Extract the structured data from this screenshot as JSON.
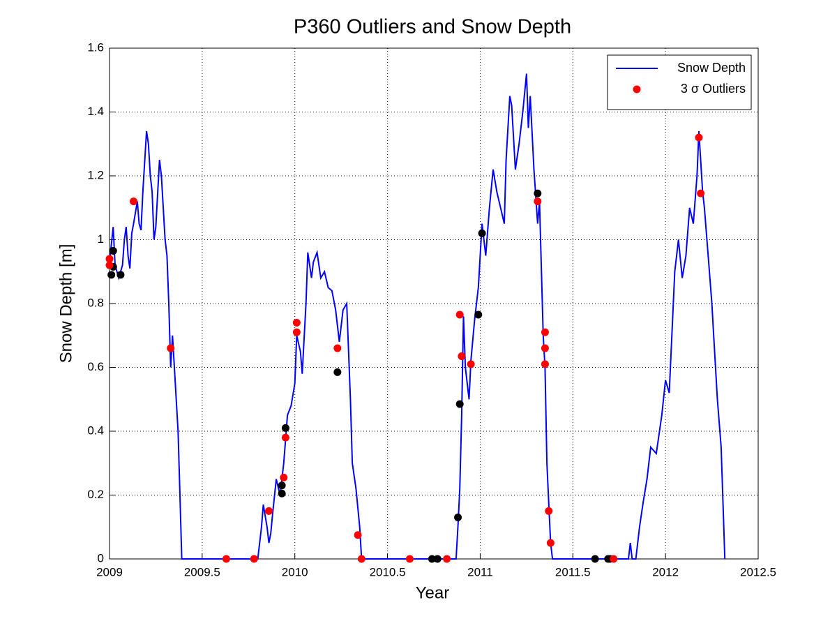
{
  "chart_data": {
    "type": "line",
    "title": "P360 Outliers and Snow Depth",
    "x_label": "Year",
    "y_label": "Snow Depth [m]",
    "xlim": [
      2009,
      2012.5
    ],
    "xticks": [
      2009,
      2009.5,
      2010,
      2010.5,
      2011,
      2011.5,
      2012,
      2012.5
    ],
    "ylim": [
      0,
      1.6
    ],
    "yticks": [
      0,
      0.2,
      0.4,
      0.6,
      0.8,
      1,
      1.2,
      1.4,
      1.6
    ],
    "grid": true,
    "legend": "top-right",
    "series": [
      {
        "name": "Snow Depth",
        "type": "line",
        "color": "#0000ff",
        "x": [
          2009.0,
          2009.02,
          2009.03,
          2009.05,
          2009.07,
          2009.08,
          2009.09,
          2009.1,
          2009.11,
          2009.12,
          2009.13,
          2009.15,
          2009.16,
          2009.17,
          2009.18,
          2009.2,
          2009.21,
          2009.22,
          2009.23,
          2009.24,
          2009.25,
          2009.27,
          2009.28,
          2009.3,
          2009.31,
          2009.32,
          2009.33,
          2009.34,
          2009.35,
          2009.37,
          2009.38,
          2009.39,
          2009.8,
          2009.82,
          2009.83,
          2009.85,
          2009.86,
          2009.87,
          2009.88,
          2009.9,
          2009.92,
          2009.94,
          2009.96,
          2009.98,
          2010.0,
          2010.01,
          2010.03,
          2010.04,
          2010.06,
          2010.07,
          2010.09,
          2010.1,
          2010.12,
          2010.14,
          2010.16,
          2010.18,
          2010.2,
          2010.22,
          2010.24,
          2010.26,
          2010.28,
          2010.3,
          2010.31,
          2010.33,
          2010.35,
          2010.36,
          2010.87,
          2010.88,
          2010.89,
          2010.9,
          2010.91,
          2010.92,
          2010.94,
          2010.95,
          2010.97,
          2010.99,
          2011.01,
          2011.03,
          2011.05,
          2011.07,
          2011.09,
          2011.11,
          2011.13,
          2011.14,
          2011.16,
          2011.17,
          2011.19,
          2011.21,
          2011.23,
          2011.25,
          2011.26,
          2011.27,
          2011.29,
          2011.31,
          2011.32,
          2011.34,
          2011.35,
          2011.36,
          2011.38,
          2011.39,
          2011.8,
          2011.81,
          2011.82,
          2011.84,
          2011.86,
          2011.88,
          2011.9,
          2011.92,
          2011.95,
          2011.98,
          2012.0,
          2012.02,
          2012.05,
          2012.07,
          2012.09,
          2012.11,
          2012.13,
          2012.15,
          2012.17,
          2012.18,
          2012.2,
          2012.21,
          2012.23,
          2012.25,
          2012.26,
          2012.28,
          2012.3,
          2012.32
        ],
        "values": [
          0.93,
          1.04,
          0.92,
          0.88,
          0.92,
          1.0,
          1.04,
          0.95,
          0.91,
          1.02,
          1.05,
          1.12,
          1.05,
          1.03,
          1.15,
          1.34,
          1.3,
          1.2,
          1.15,
          1.0,
          1.04,
          1.25,
          1.2,
          1.0,
          0.95,
          0.8,
          0.6,
          0.7,
          0.6,
          0.4,
          0.2,
          0,
          0,
          0.1,
          0.17,
          0.1,
          0.05,
          0.08,
          0.14,
          0.25,
          0.2,
          0.3,
          0.45,
          0.48,
          0.55,
          0.7,
          0.65,
          0.58,
          0.8,
          0.96,
          0.88,
          0.93,
          0.96,
          0.88,
          0.9,
          0.85,
          0.84,
          0.78,
          0.68,
          0.78,
          0.8,
          0.5,
          0.3,
          0.22,
          0.1,
          0,
          0,
          0.1,
          0.22,
          0.45,
          0.76,
          0.6,
          0.5,
          0.62,
          0.75,
          0.85,
          1.05,
          0.95,
          1.1,
          1.22,
          1.15,
          1.1,
          1.05,
          1.25,
          1.45,
          1.42,
          1.22,
          1.3,
          1.4,
          1.52,
          1.35,
          1.45,
          1.22,
          1.05,
          1.12,
          0.7,
          0.6,
          0.3,
          0.05,
          0,
          0,
          0.05,
          0,
          0,
          0.1,
          0.18,
          0.25,
          0.35,
          0.33,
          0.45,
          0.56,
          0.52,
          0.9,
          1.0,
          0.88,
          0.95,
          1.1,
          1.05,
          1.2,
          1.34,
          1.15,
          1.1,
          0.95,
          0.8,
          0.7,
          0.5,
          0.35,
          0
        ]
      },
      {
        "type": "scatter",
        "color": "#000000",
        "x": [
          2009.01,
          2009.02,
          2009.02,
          2009.06,
          2009.93,
          2009.93,
          2009.95,
          2010.23,
          2010.74,
          2010.77,
          2010.88,
          2010.89,
          2010.99,
          2011.01,
          2011.31,
          2011.62,
          2011.69,
          2011.7
        ],
        "values": [
          0.89,
          0.965,
          0.915,
          0.89,
          0.23,
          0.205,
          0.41,
          0.585,
          0,
          0,
          0.13,
          0.485,
          0.765,
          1.02,
          1.145,
          0,
          0,
          0
        ]
      },
      {
        "name": "3 σ Outliers",
        "type": "scatter",
        "color": "#ff0000",
        "x": [
          2009.0,
          2009.0,
          2009.13,
          2009.33,
          2009.63,
          2009.78,
          2009.86,
          2009.94,
          2009.95,
          2010.01,
          2010.01,
          2010.23,
          2010.34,
          2010.36,
          2010.62,
          2010.82,
          2010.89,
          2010.9,
          2010.95,
          2011.31,
          2011.35,
          2011.35,
          2011.35,
          2011.37,
          2011.38,
          2011.72,
          2012.18,
          2012.19
        ],
        "values": [
          0.94,
          0.92,
          1.12,
          0.66,
          0,
          0,
          0.15,
          0.255,
          0.38,
          0.74,
          0.71,
          0.66,
          0.075,
          0,
          0,
          0,
          0.765,
          0.635,
          0.61,
          1.12,
          0.71,
          0.66,
          0.61,
          0.15,
          0.05,
          0,
          1.32,
          1.145
        ]
      }
    ]
  }
}
